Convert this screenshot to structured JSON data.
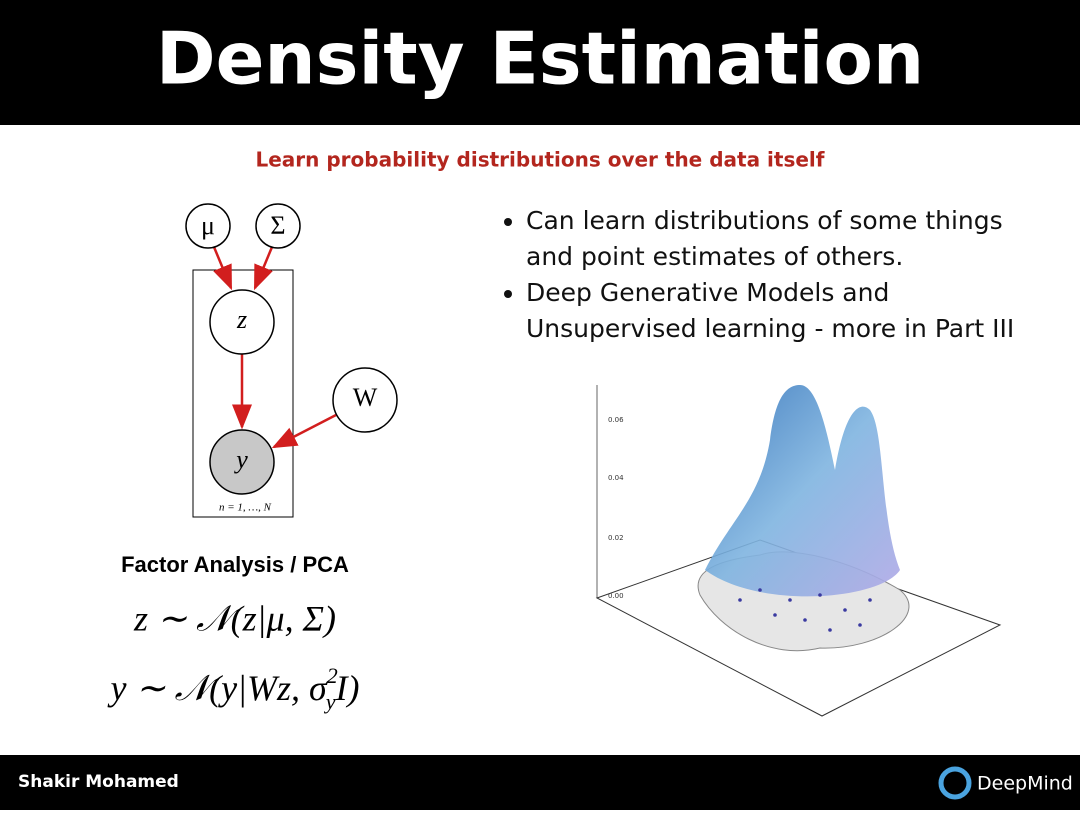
{
  "header": {
    "title": "Density Estimation"
  },
  "subtitle": "Learn probability distributions over the data itself",
  "graph": {
    "nodes": [
      {
        "label": "μ"
      },
      {
        "label": "Σ"
      },
      {
        "label": "z"
      },
      {
        "label": "W"
      },
      {
        "label": "y"
      }
    ],
    "plate_label": "n = 1, …, N"
  },
  "caption": "Factor Analysis / PCA",
  "equations": [
    {
      "text": "z ∼ 𝒩(z|μ, Σ)"
    },
    {
      "prefix": "y ∼ 𝒩(y|Wz, σ",
      "sup": "2",
      "sub": "y",
      "suffix": "I)"
    }
  ],
  "bullets": [
    {
      "lines": [
        "Can learn distributions of some things",
        "and point estimates of others."
      ]
    },
    {
      "lines": [
        "Deep Generative Models and",
        "Unsupervised learning - more in Part III"
      ]
    }
  ],
  "plot": {
    "tick_labels": [
      "0.06",
      "0.04",
      "0.02",
      "0.00"
    ]
  },
  "footer": {
    "author": "Shakir Mohamed",
    "logo": "DeepMind"
  }
}
